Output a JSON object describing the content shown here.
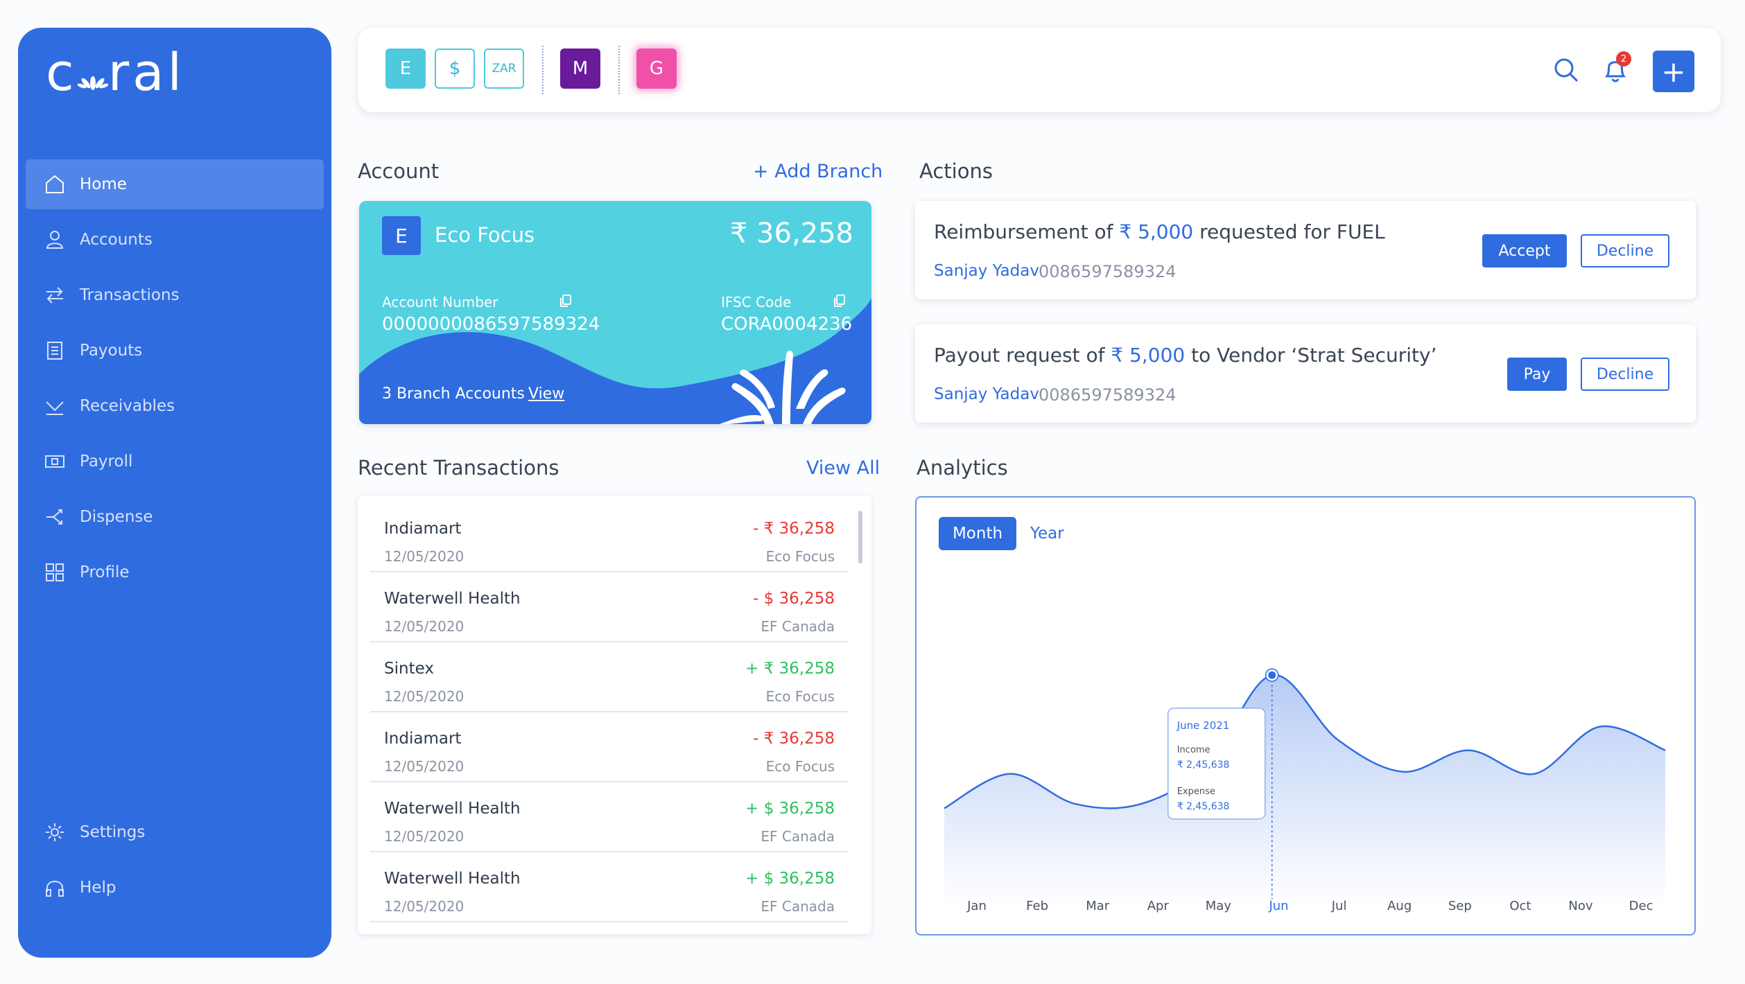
{
  "app": {
    "logo": "coral"
  },
  "sidebar": {
    "items": [
      {
        "label": "Home",
        "icon": "home-icon",
        "active": true
      },
      {
        "label": "Accounts",
        "icon": "user-icon"
      },
      {
        "label": "Transactions",
        "icon": "transfer-icon"
      },
      {
        "label": "Payouts",
        "icon": "receipt-icon"
      },
      {
        "label": "Receivables",
        "icon": "download-icon"
      },
      {
        "label": "Payroll",
        "icon": "cash-icon"
      },
      {
        "label": "Dispense",
        "icon": "split-icon"
      },
      {
        "label": "Profile",
        "icon": "grid-icon"
      }
    ],
    "bottom": [
      {
        "label": "Settings",
        "icon": "gear-icon"
      },
      {
        "label": "Help",
        "icon": "headphones-icon"
      }
    ]
  },
  "topbar": {
    "chips": [
      "E",
      "$",
      "ZAR",
      "M",
      "G"
    ],
    "notifications": "2",
    "add": "+"
  },
  "account": {
    "title": "Account",
    "add_branch": "+ Add Branch",
    "badge": "E",
    "name": "Eco Focus",
    "balance": "₹ 36,258",
    "number_label": "Account Number",
    "number": "0000000086597589324",
    "ifsc_label": "IFSC Code",
    "ifsc": "CORA0004236",
    "branches": "3 Branch Accounts",
    "view": "View"
  },
  "transactions": {
    "title": "Recent Transactions",
    "view_all": "View All",
    "rows": [
      {
        "name": "Indiamart",
        "date": "12/05/2020",
        "amount": "- ₹ 36,258",
        "account": "Eco Focus",
        "type": "debit"
      },
      {
        "name": "Waterwell Health",
        "date": "12/05/2020",
        "amount": "- $ 36,258",
        "account": "EF Canada",
        "type": "debit"
      },
      {
        "name": "Sintex",
        "date": "12/05/2020",
        "amount": "+ ₹ 36,258",
        "account": "Eco Focus",
        "type": "credit"
      },
      {
        "name": "Indiamart",
        "date": "12/05/2020",
        "amount": "- ₹ 36,258",
        "account": "Eco Focus",
        "type": "debit"
      },
      {
        "name": "Waterwell Health",
        "date": "12/05/2020",
        "amount": "+ $ 36,258",
        "account": "EF Canada",
        "type": "credit"
      },
      {
        "name": "Waterwell Health",
        "date": "12/05/2020",
        "amount": "+ $ 36,258",
        "account": "EF Canada",
        "type": "credit"
      }
    ]
  },
  "actions": {
    "title": "Actions",
    "items": [
      {
        "prefix": "Reimbursement of",
        "amount": "₹ 5,000",
        "suffix": "requested for FUEL",
        "user": "Sanjay Yadav",
        "account": "0086597589324",
        "primary": "Accept",
        "secondary": "Decline"
      },
      {
        "prefix": "Payout request of",
        "amount": "₹ 5,000",
        "suffix": "to Vendor ‘Strat Security’",
        "user": "Sanjay Yadav",
        "account": "0086597589324",
        "primary": "Pay",
        "secondary": "Decline"
      }
    ]
  },
  "analytics": {
    "title": "Analytics",
    "tabs": [
      "Month",
      "Year"
    ],
    "tooltip": {
      "title": "June 2021",
      "income_label": "Income",
      "income": "₹ 2,45,638",
      "expense_label": "Expense",
      "expense": "₹ 2,45,638"
    }
  },
  "chart_data": {
    "type": "area",
    "categories": [
      "Jan",
      "Feb",
      "Mar",
      "Apr",
      "May",
      "Jun",
      "Jul",
      "Aug",
      "Sep",
      "Oct",
      "Nov",
      "Dec"
    ],
    "values": [
      0.36,
      0.52,
      0.38,
      0.38,
      0.56,
      0.98,
      0.68,
      0.53,
      0.63,
      0.52,
      0.74,
      0.63
    ],
    "selected": "Jun",
    "ylim": [
      0,
      1
    ]
  },
  "colors": {
    "primary": "#2f6ce0",
    "accent": "#52d1e1",
    "negative": "#e53935",
    "positive": "#2fbe5e"
  }
}
